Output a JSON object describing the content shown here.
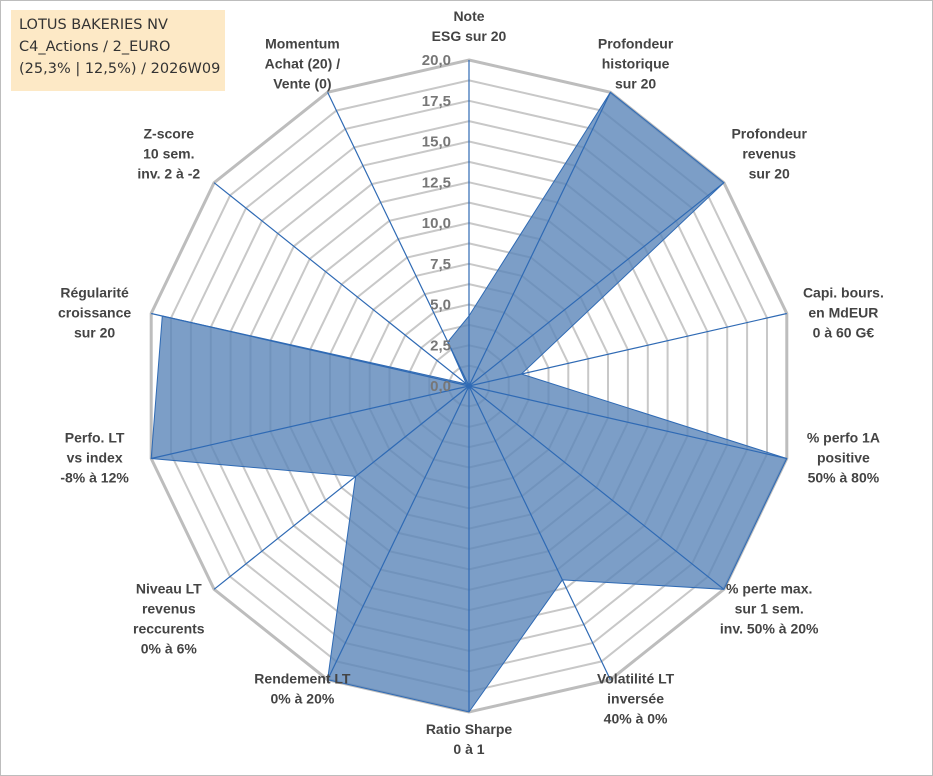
{
  "info_box": {
    "line1": "LOTUS BAKERIES NV",
    "line2": "C4_Actions / 2_EURO",
    "line3": "(25,3% | 12,5%) / 2026W09"
  },
  "colors": {
    "fill": "#5b86b9",
    "fill_opacity": 0.8,
    "series_line": "#2f6ab4",
    "axis": "#2f6ab4",
    "grid": "#c8c8c8",
    "outer_grid": "#bdbdbd"
  },
  "chart_data": {
    "type": "radar",
    "title": "",
    "rmin": 0,
    "rmax": 20,
    "tick_values": [
      0,
      2.5,
      5,
      7.5,
      10,
      12.5,
      15,
      17.5,
      20
    ],
    "tick_labels": [
      "0,0",
      "2,5",
      "5,0",
      "7,5",
      "10,0",
      "12,5",
      "15,0",
      "17,5",
      "20,0"
    ],
    "categories": [
      [
        "Note",
        "ESG sur 20"
      ],
      [
        "Profondeur",
        "historique",
        "sur 20"
      ],
      [
        "Profondeur",
        "revenus",
        "sur 20"
      ],
      [
        "Capi. bours.",
        "en MdEUR",
        "0 à 60 G€"
      ],
      [
        "% perfo 1A",
        "positive",
        "50% à 80%"
      ],
      [
        "% perte max.",
        "sur 1 sem.",
        "inv. 50% à 20%"
      ],
      [
        "Volatilité LT",
        "inversée",
        "40% à 0%"
      ],
      [
        "Ratio Sharpe",
        "0 à 1"
      ],
      [
        "Rendement LT",
        "0% à 20%"
      ],
      [
        "Niveau LT",
        "revenus",
        "reccurents",
        "0% à 6%"
      ],
      [
        "Perfo. LT",
        "vs index",
        "-8% à 12%"
      ],
      [
        "Régularité",
        "croissance",
        "sur 20"
      ],
      [
        "Z-score",
        "10 sem.",
        "inv. 2 à -2"
      ],
      [
        "Momentum",
        "Achat (20) /",
        "Vente (0)"
      ]
    ],
    "series": [
      {
        "name": "LOTUS BAKERIES NV",
        "values": [
          4.3,
          20,
          20,
          3.3,
          20,
          20,
          13.2,
          20,
          20,
          8.9,
          20,
          19.3,
          0.2,
          3.0
        ]
      }
    ]
  }
}
